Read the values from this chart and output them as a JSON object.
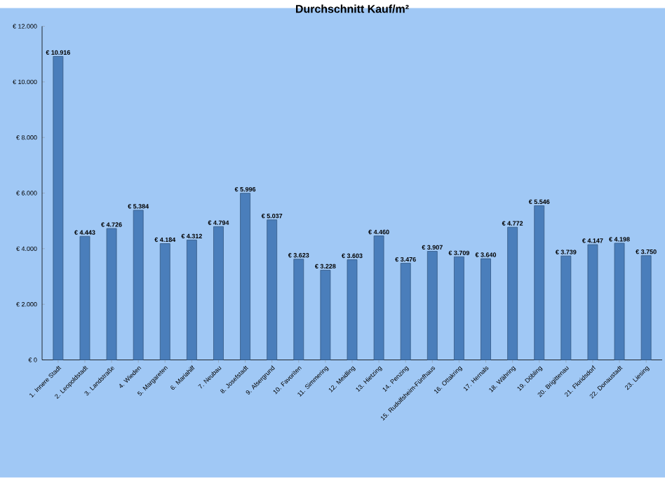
{
  "chart_data": {
    "type": "bar",
    "title": "Durchschnitt Kauf/m²",
    "categories": [
      "1. Innere Stadt",
      "2. Leopoldstadt",
      "3. Landstraße",
      "4. Wieden",
      "5. Margareten",
      "6. Mariahilf",
      "7. Neubau",
      "8. Josefstadt",
      "9. Alsergrund",
      "10. Favoriten",
      "11. Simmering",
      "12. Meidling",
      "13. Hietzing",
      "14. Penzing",
      "15. Rudolfsheim-Fünfhaus",
      "16. Ottakring",
      "17. Hernals",
      "18. Währing",
      "19. Döbling",
      "20. Brigittenau",
      "21. Floridsdorf",
      "22. Donaustadt",
      "23. Liesing"
    ],
    "values": [
      10916,
      4443,
      4726,
      5384,
      4184,
      4312,
      4794,
      5996,
      5037,
      3623,
      3228,
      3603,
      4460,
      3476,
      3907,
      3709,
      3640,
      4772,
      5546,
      3739,
      4147,
      4198,
      3750
    ],
    "value_labels": [
      "€ 10.916",
      "€ 4.443",
      "€ 4.726",
      "€ 5.384",
      "€ 4.184",
      "€ 4.312",
      "€ 4.794",
      "€ 5.996",
      "€ 5.037",
      "€ 3.623",
      "€ 3.228",
      "€ 3.603",
      "€ 4.460",
      "€ 3.476",
      "€ 3.907",
      "€ 3.709",
      "€ 3.640",
      "€ 4.772",
      "€ 5.546",
      "€ 3.739",
      "€ 4.147",
      "€ 4.198",
      "€ 3.750"
    ],
    "color": "#4a7ebb",
    "ylim": [
      0,
      12000
    ],
    "yticks": [
      {
        "value": 0,
        "label": "€ 0"
      },
      {
        "value": 2000,
        "label": "€ 2.000"
      },
      {
        "value": 4000,
        "label": "€ 4.000"
      },
      {
        "value": 6000,
        "label": "€ 6.000"
      },
      {
        "value": 8000,
        "label": "€ 8.000"
      },
      {
        "value": 10000,
        "label": "€ 10.000"
      },
      {
        "value": 12000,
        "label": "€ 12.000"
      }
    ]
  }
}
